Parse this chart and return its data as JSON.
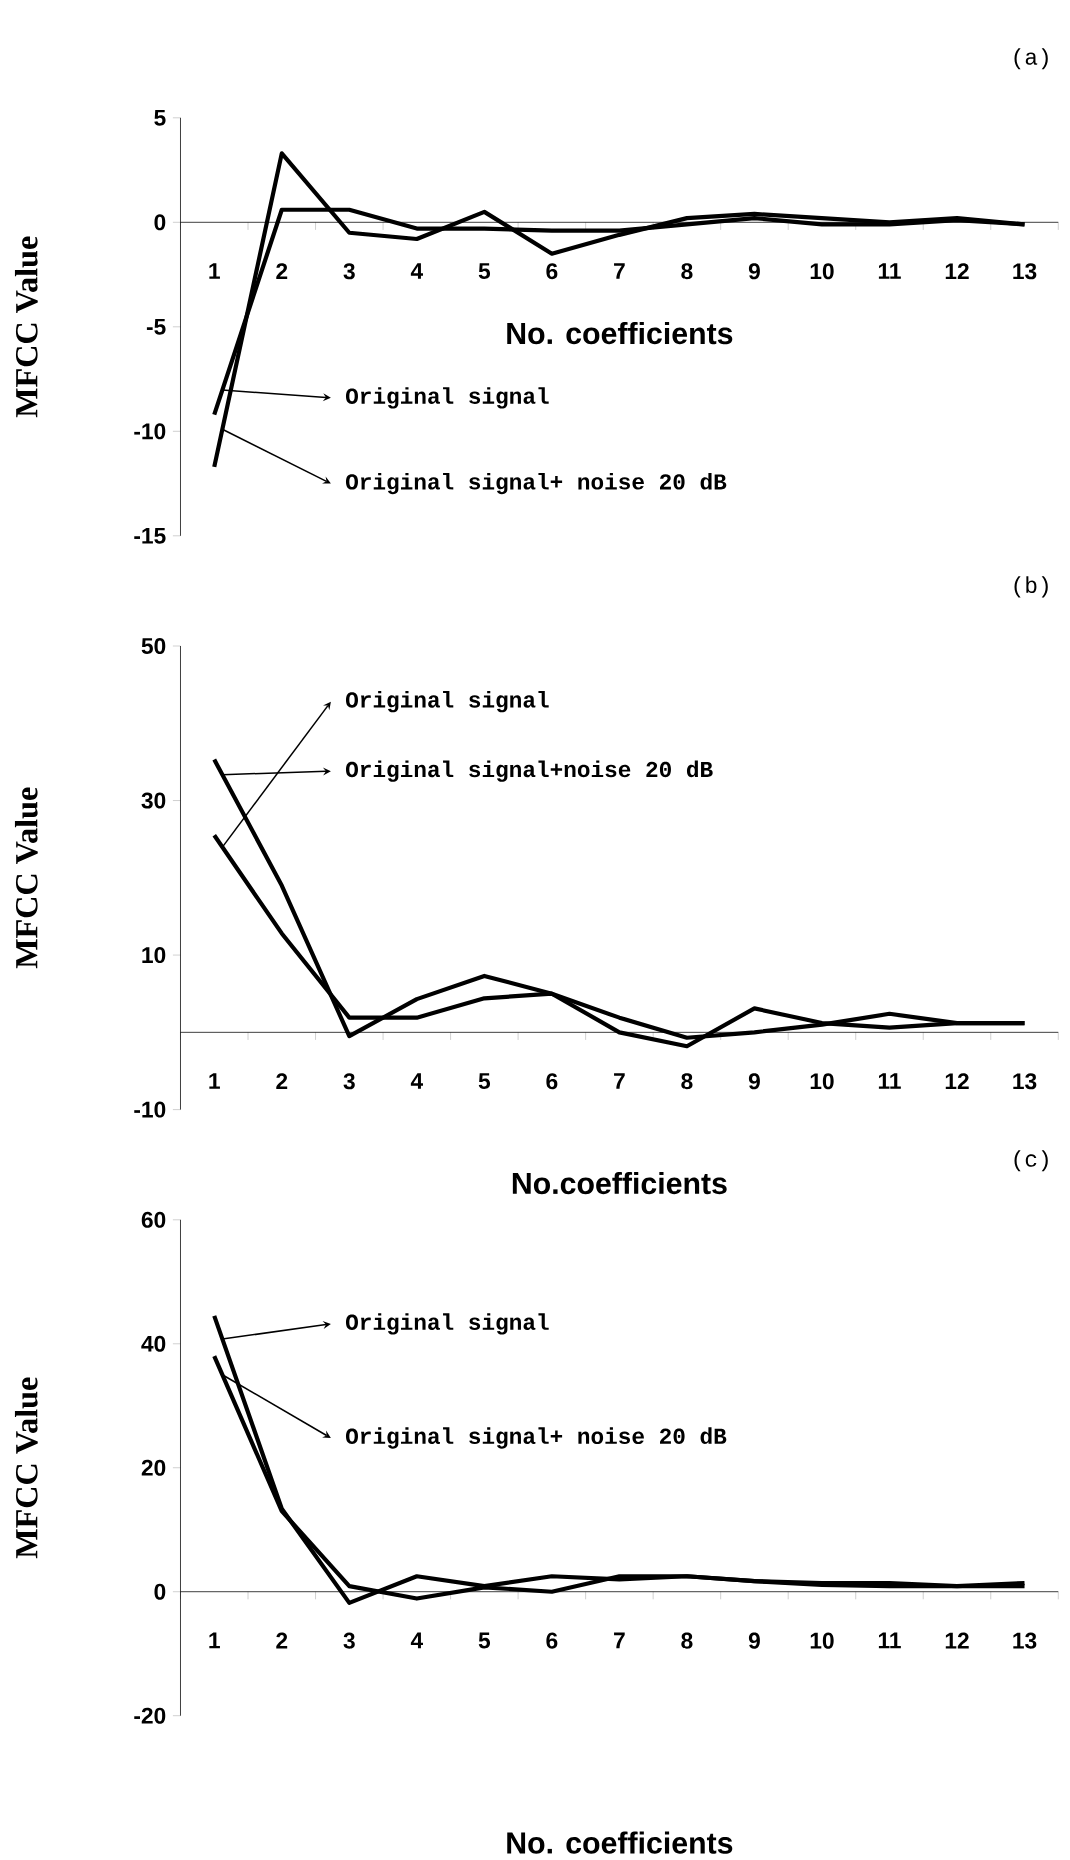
{
  "chart_data": [
    {
      "type": "line",
      "categories": [
        "1",
        "2",
        "3",
        "4",
        "5",
        "6",
        "7",
        "8",
        "9",
        "10",
        "11",
        "12",
        "13"
      ],
      "ylim": [
        -15,
        5
      ],
      "legend": "left",
      "yticks": [
        -15,
        -10,
        -5,
        0,
        5
      ],
      "xlabel": "No. coefficients",
      "ylabel": "MFCC Value",
      "annotations": [
        "(a)"
      ],
      "series": [
        {
          "name": "Original signal",
          "color": "#000000",
          "values": [
            -9.2,
            0.6,
            0.6,
            -0.3,
            -0.3,
            -0.4,
            -0.4,
            -0.1,
            0.2,
            -0.1,
            -0.1,
            0.1,
            -0.1
          ]
        },
        {
          "name": "Original signal+ noise 20 dB",
          "color": "#000000",
          "values": [
            -11.7,
            3.3,
            -0.5,
            -0.8,
            0.5,
            -1.5,
            -0.6,
            0.2,
            0.4,
            0.2,
            0,
            0.2,
            -0.1
          ]
        }
      ]
    },
    {
      "type": "line",
      "categories": [
        "1",
        "2",
        "3",
        "4",
        "5",
        "6",
        "7",
        "8",
        "9",
        "10",
        "11",
        "12",
        "13"
      ],
      "ylim": [
        -10,
        50
      ],
      "legend": "top left",
      "yticks": [
        -10,
        10,
        30,
        50
      ],
      "xlabel": "No.coefficients",
      "ylabel": "MFCC Value",
      "annotations": [
        "(b)"
      ],
      "series": [
        {
          "name": "Original signal",
          "color": "#000000",
          "values": [
            25.5,
            12.8,
            1.9,
            1.9,
            4.4,
            5,
            1.9,
            -0.7,
            0,
            1,
            2.4,
            1.2,
            1.2
          ]
        },
        {
          "name": "Original signal+noise 20 dB",
          "color": "#000000",
          "values": [
            35.3,
            19,
            -0.5,
            4.3,
            7.3,
            5,
            0,
            -1.8,
            3.1,
            1.2,
            0.6,
            1.2,
            1.2
          ]
        }
      ]
    },
    {
      "type": "line",
      "categories": [
        "1",
        "2",
        "3",
        "4",
        "5",
        "6",
        "7",
        "8",
        "9",
        "10",
        "11",
        "12",
        "13"
      ],
      "ylim": [
        -20,
        60
      ],
      "legend": "top left",
      "yticks": [
        -20,
        0,
        20,
        40,
        60
      ],
      "xlabel": "No. coefficients",
      "ylabel": "MFCC Value",
      "annotations": [
        "(c)"
      ],
      "series": [
        {
          "name": "Original signal",
          "color": "#000000",
          "values": [
            44.5,
            13.4,
            -1.8,
            2.5,
            0.9,
            2.5,
            2,
            2.5,
            1.7,
            1.4,
            1.4,
            0.9,
            1.4
          ]
        },
        {
          "name": "Original signal+ noise 20 dB",
          "color": "#000000",
          "values": [
            38,
            13,
            0.9,
            -1.1,
            0.7,
            0,
            2.5,
            2.5,
            1.7,
            1.1,
            0.9,
            0.9,
            0.9
          ]
        }
      ]
    }
  ]
}
